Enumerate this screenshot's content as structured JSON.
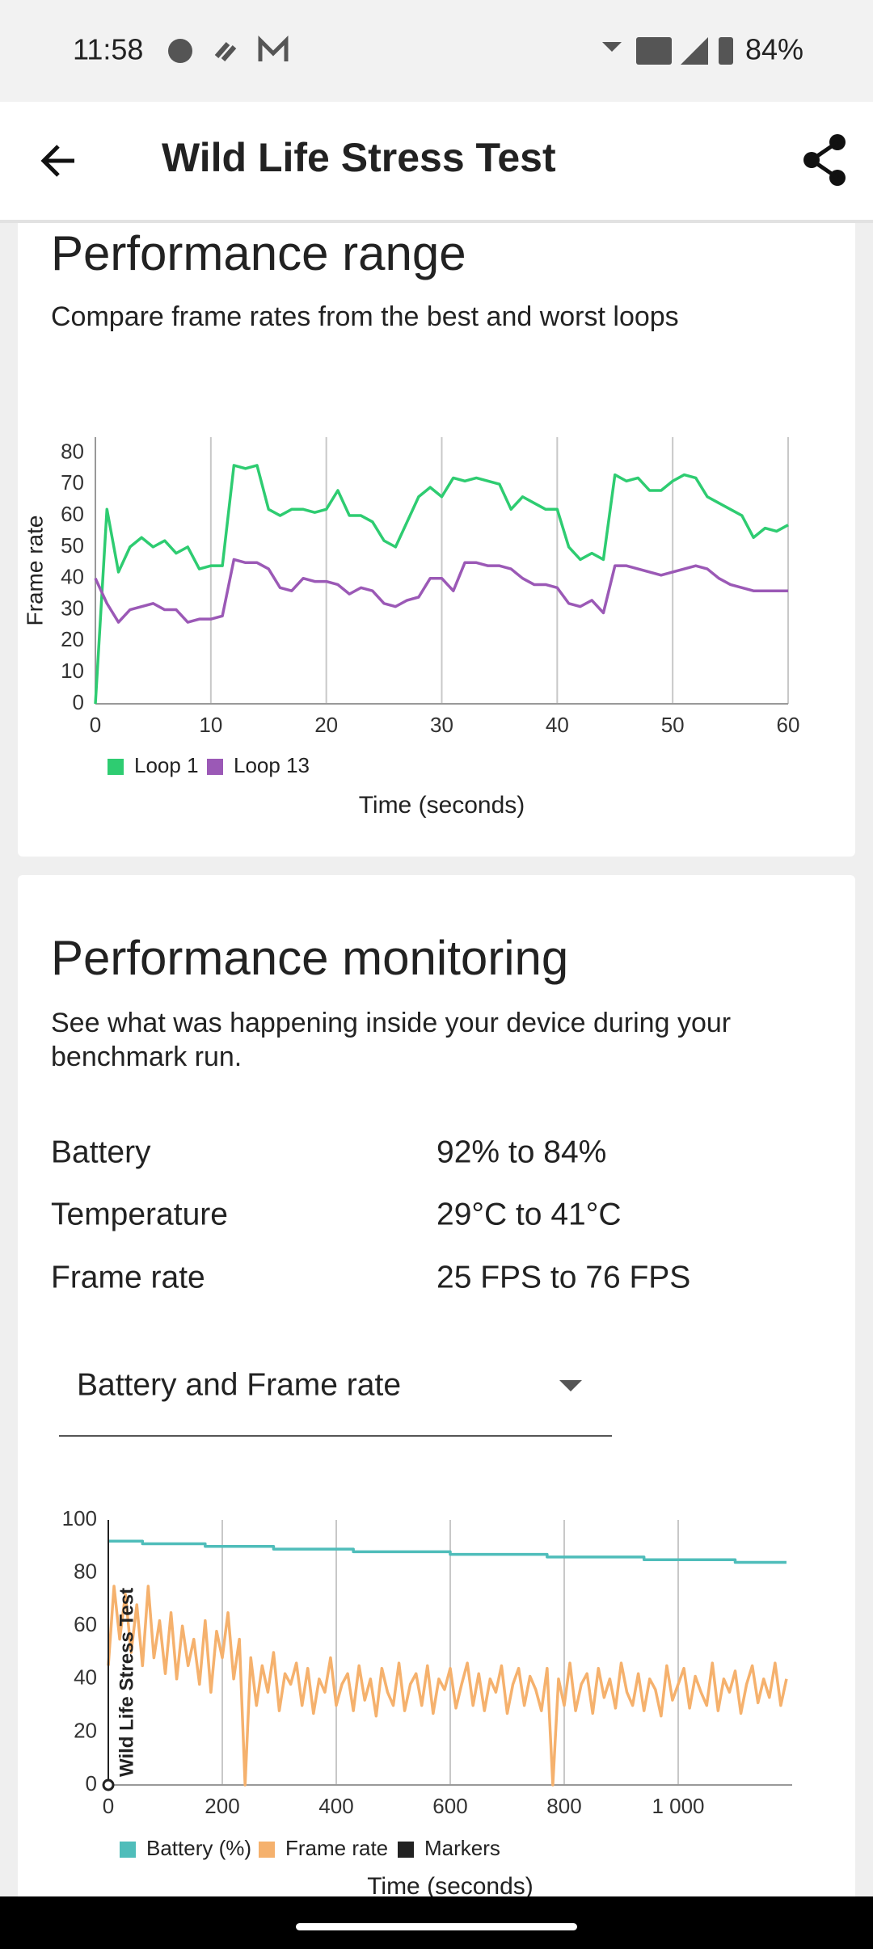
{
  "status_bar": {
    "time": "11:58",
    "battery": "84%"
  },
  "app_bar": {
    "title": "Wild Life Stress Test"
  },
  "range_card": {
    "title": "Performance range",
    "subtitle": "Compare frame rates from the best and worst loops"
  },
  "monitor_card": {
    "title": "Performance monitoring",
    "subtitle": [
      "See what was happening inside your device during your",
      "benchmark run."
    ],
    "rows": [
      {
        "label": "Battery",
        "value": "92% to 84%"
      },
      {
        "label": "Temperature",
        "value": "29°C to 41°C"
      },
      {
        "label": "Frame rate",
        "value": "25 FPS to 76 FPS"
      }
    ],
    "dropdown": "Battery and Frame rate"
  },
  "chart_data": [
    {
      "type": "line",
      "ylabel": "Frame rate",
      "xlabel": "Time (seconds)",
      "grid": "x",
      "xlim": [
        0,
        60
      ],
      "ylim": [
        0,
        85
      ],
      "xticks": [
        0,
        10,
        20,
        30,
        40,
        50,
        60
      ],
      "yticks": [
        0,
        10,
        20,
        30,
        40,
        50,
        60,
        70,
        80
      ],
      "x": [
        0,
        1,
        2,
        3,
        4,
        5,
        6,
        7,
        8,
        9,
        10,
        11,
        12,
        13,
        14,
        15,
        16,
        17,
        18,
        19,
        20,
        21,
        22,
        23,
        24,
        25,
        26,
        27,
        28,
        29,
        30,
        31,
        32,
        33,
        34,
        35,
        36,
        37,
        38,
        39,
        40,
        41,
        42,
        43,
        44,
        45,
        46,
        47,
        48,
        49,
        50,
        51,
        52,
        53,
        54,
        55,
        56,
        57,
        58,
        59,
        60
      ],
      "series": [
        {
          "name": "Loop 1",
          "color": "#2ecc71",
          "values": [
            0,
            62,
            42,
            50,
            53,
            50,
            52,
            48,
            50,
            43,
            44,
            44,
            76,
            75,
            76,
            62,
            60,
            62,
            62,
            61,
            62,
            68,
            60,
            60,
            58,
            52,
            50,
            58,
            66,
            69,
            66,
            72,
            71,
            72,
            71,
            70,
            62,
            66,
            64,
            62,
            62,
            50,
            46,
            48,
            46,
            73,
            71,
            72,
            68,
            68,
            71,
            73,
            72,
            66,
            64,
            62,
            60,
            53,
            56,
            55,
            57
          ]
        },
        {
          "name": "Loop 13",
          "color": "#9b59b6",
          "values": [
            40,
            32,
            26,
            30,
            31,
            32,
            30,
            30,
            26,
            27,
            27,
            28,
            46,
            45,
            45,
            43,
            37,
            36,
            40,
            39,
            39,
            38,
            35,
            37,
            36,
            32,
            31,
            33,
            34,
            40,
            40,
            36,
            45,
            45,
            44,
            44,
            43,
            40,
            38,
            38,
            37,
            32,
            31,
            33,
            29,
            44,
            44,
            43,
            42,
            41,
            42,
            43,
            44,
            43,
            40,
            38,
            37,
            36,
            36,
            36,
            36
          ]
        }
      ]
    },
    {
      "type": "line",
      "xlabel": "Time (seconds)",
      "grid": "x",
      "xlim": [
        0,
        1200
      ],
      "ylim": [
        0,
        100
      ],
      "xticks": [
        0,
        200,
        400,
        600,
        800,
        {
          "value": 1000,
          "label": "1 000"
        }
      ],
      "yticks": [
        0,
        20,
        40,
        60,
        80,
        100
      ],
      "series": [
        {
          "name": "Battery (%)",
          "color": "#4fbdba",
          "x": [
            0,
            60,
            60,
            170,
            170,
            290,
            290,
            430,
            430,
            600,
            600,
            770,
            770,
            940,
            940,
            1100,
            1100,
            1190
          ],
          "values": [
            92,
            92,
            91,
            91,
            90,
            90,
            89,
            89,
            88,
            88,
            87,
            87,
            86,
            86,
            85,
            85,
            84,
            84
          ]
        },
        {
          "name": "Frame rate",
          "color": "#f5b16d",
          "x": [
            0,
            10,
            20,
            30,
            40,
            50,
            60,
            70,
            80,
            90,
            100,
            110,
            120,
            130,
            140,
            150,
            160,
            170,
            180,
            190,
            200,
            210,
            220,
            230,
            240,
            250,
            260,
            270,
            280,
            290,
            300,
            310,
            320,
            330,
            340,
            350,
            360,
            370,
            380,
            390,
            400,
            410,
            420,
            430,
            440,
            450,
            460,
            470,
            480,
            490,
            500,
            510,
            520,
            530,
            540,
            550,
            560,
            570,
            580,
            590,
            600,
            610,
            620,
            630,
            640,
            650,
            660,
            670,
            680,
            690,
            700,
            710,
            720,
            730,
            740,
            750,
            760,
            770,
            780,
            790,
            800,
            810,
            820,
            830,
            840,
            850,
            860,
            870,
            880,
            890,
            900,
            910,
            920,
            930,
            940,
            950,
            960,
            970,
            980,
            990,
            1000,
            1010,
            1020,
            1030,
            1040,
            1050,
            1060,
            1070,
            1080,
            1090,
            1100,
            1110,
            1120,
            1130,
            1140,
            1150,
            1160,
            1170,
            1180,
            1190
          ],
          "values": [
            45,
            75,
            55,
            72,
            50,
            68,
            45,
            75,
            48,
            62,
            42,
            65,
            40,
            60,
            45,
            55,
            38,
            62,
            35,
            58,
            48,
            65,
            40,
            55,
            0,
            48,
            30,
            45,
            35,
            50,
            28,
            42,
            38,
            46,
            30,
            44,
            27,
            40,
            35,
            48,
            30,
            38,
            42,
            28,
            45,
            32,
            40,
            26,
            44,
            35,
            30,
            46,
            28,
            38,
            42,
            30,
            45,
            27,
            40,
            36,
            44,
            29,
            38,
            46,
            30,
            42,
            28,
            40,
            35,
            45,
            27,
            38,
            44,
            30,
            41,
            36,
            28,
            44,
            0,
            40,
            30,
            46,
            28,
            38,
            42,
            27,
            44,
            33,
            40,
            29,
            46,
            35,
            30,
            42,
            28,
            40,
            36,
            26,
            45,
            32,
            38,
            44,
            29,
            41,
            35,
            30,
            46,
            28,
            40,
            35,
            43,
            27,
            38,
            45,
            31,
            40,
            33,
            46,
            30,
            40
          ]
        }
      ],
      "markers": {
        "name": "Markers",
        "color": "#222222",
        "items": [
          {
            "x": 0,
            "label": "Wild Life Stress Test"
          }
        ]
      }
    }
  ]
}
